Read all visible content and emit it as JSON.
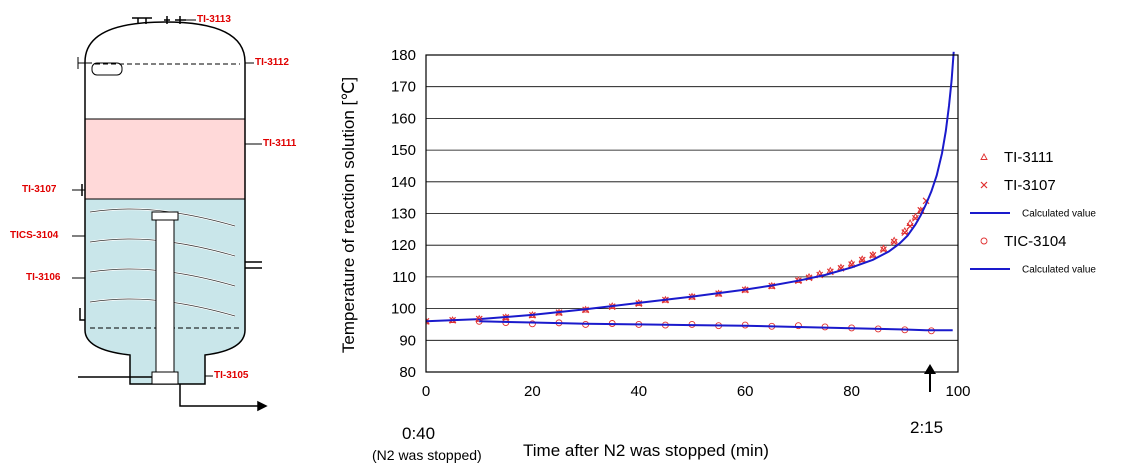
{
  "diagram": {
    "tags": {
      "ti3113": "TI-3113",
      "ti3112": "TI-3112",
      "ti3111": "TI-3111",
      "ti3107": "TI-3107",
      "tics3104": "TICS-3104",
      "ti3106": "TI-3106",
      "ti3105": "TI-3105"
    },
    "colors": {
      "tag_text": "#e00000",
      "middle_zone": "#ffd9d9",
      "liquid_zone": "#c9e6ea",
      "outline": "#000000"
    }
  },
  "annotations": {
    "start_time": "0:40",
    "start_note": "(N2 was stopped)",
    "end_time": "2:15",
    "arrow": "up-arrow"
  },
  "chart_data": {
    "type": "line",
    "title": "",
    "xlabel": "Time after N2 was stopped (min)",
    "ylabel": "Temperature of reaction solution [℃]",
    "xlim": [
      0,
      100
    ],
    "ylim": [
      80,
      180
    ],
    "xticks": [
      0,
      20,
      40,
      60,
      80,
      100
    ],
    "yticks": [
      80,
      90,
      100,
      110,
      120,
      130,
      140,
      150,
      160,
      170,
      180
    ],
    "grid": "horizontal",
    "legend_position": "right",
    "colors": {
      "measured": "#e03030",
      "calculated": "#1a1acc"
    },
    "series": [
      {
        "name": "TI-3111",
        "marker": "triangle",
        "x": [
          0,
          5,
          10,
          15,
          20,
          25,
          30,
          35,
          40,
          45,
          50,
          55,
          60,
          65,
          70,
          72,
          74,
          76,
          78,
          80,
          82,
          84,
          86,
          88,
          90,
          91,
          92,
          93
        ],
        "y": [
          96,
          96.4,
          96.8,
          97.3,
          98,
          98.8,
          99.7,
          100.8,
          101.8,
          102.8,
          103.8,
          104.8,
          106,
          107.2,
          109,
          110,
          111,
          112,
          113,
          114.3,
          115.6,
          117,
          119,
          121.5,
          124.5,
          127,
          129,
          131
        ]
      },
      {
        "name": "TI-3107",
        "marker": "x",
        "x": [
          0,
          5,
          10,
          15,
          20,
          25,
          30,
          35,
          40,
          45,
          50,
          55,
          60,
          65,
          70,
          72,
          74,
          76,
          78,
          80,
          82,
          84,
          86,
          88,
          90,
          91,
          92,
          93,
          94
        ],
        "y": [
          96,
          96.3,
          96.7,
          97.2,
          97.9,
          98.7,
          99.6,
          100.6,
          101.6,
          102.7,
          103.7,
          104.7,
          105.9,
          107.1,
          108.8,
          109.7,
          110.6,
          111.6,
          112.7,
          113.9,
          115.3,
          116.8,
          118.6,
          121,
          124,
          126,
          128.5,
          131,
          134
        ]
      },
      {
        "name": "Calculated value",
        "marker": "line",
        "x": [
          0,
          10,
          20,
          30,
          40,
          50,
          60,
          65,
          70,
          75,
          80,
          84,
          87,
          89,
          90.5,
          92,
          93,
          94,
          95,
          96,
          97,
          97.7,
          98.3,
          98.8,
          99.2
        ],
        "y": [
          96,
          96.7,
          98,
          99.8,
          101.8,
          103.8,
          106,
          107.3,
          108.8,
          110.6,
          113,
          115.4,
          118,
          120.5,
          123,
          126.5,
          129.5,
          133,
          137,
          142,
          149,
          156,
          164,
          172,
          181
        ]
      },
      {
        "name": "TIC-3104",
        "marker": "circle",
        "x": [
          10,
          15,
          20,
          25,
          30,
          35,
          40,
          45,
          50,
          55,
          60,
          65,
          70,
          75,
          80,
          85,
          90,
          95
        ],
        "y": [
          96,
          95.6,
          95.2,
          95.5,
          95,
          95.3,
          95,
          94.8,
          95,
          94.6,
          94.8,
          94.4,
          94.6,
          94.2,
          93.9,
          93.6,
          93.3,
          93
        ]
      },
      {
        "name": "Calculated value",
        "marker": "line",
        "x": [
          10,
          20,
          30,
          40,
          50,
          60,
          70,
          80,
          90,
          94,
          99
        ],
        "y": [
          96,
          95.6,
          95.2,
          95,
          94.8,
          94.6,
          94.2,
          93.8,
          93.4,
          93.2,
          93.2
        ]
      }
    ]
  }
}
